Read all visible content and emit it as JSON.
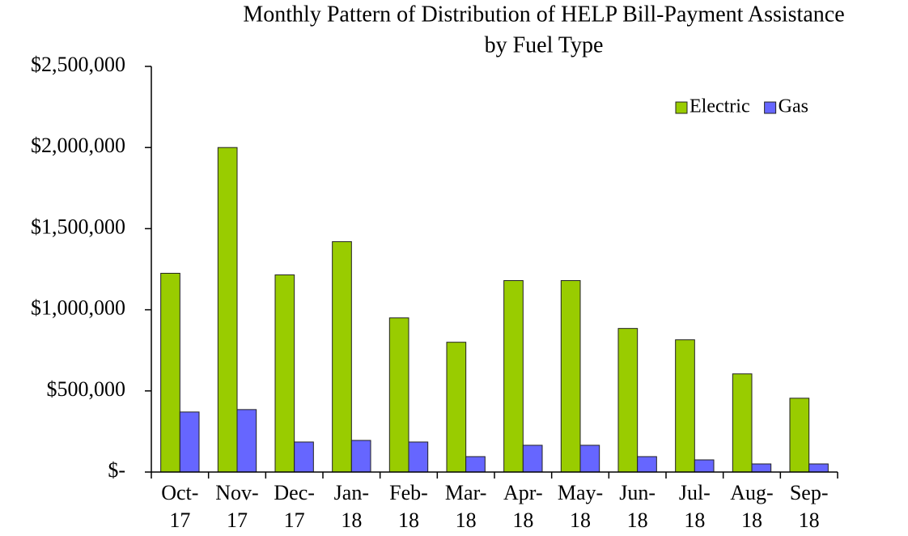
{
  "chart_data": {
    "type": "bar",
    "title": [
      "Monthly Pattern of Distribution of HELP Bill-Payment Assistance",
      "by Fuel Type"
    ],
    "categories": [
      [
        "Oct-",
        "17"
      ],
      [
        "Nov-",
        "17"
      ],
      [
        "Dec-",
        "17"
      ],
      [
        "Jan-",
        "18"
      ],
      [
        "Feb-",
        "18"
      ],
      [
        "Mar-",
        "18"
      ],
      [
        "Apr-",
        "18"
      ],
      [
        "May-",
        "18"
      ],
      [
        "Jun-",
        "18"
      ],
      [
        "Jul-",
        "18"
      ],
      [
        "Aug-",
        "18"
      ],
      [
        "Sep-",
        "18"
      ]
    ],
    "series": [
      {
        "name": "Electric",
        "color": "#99cc00",
        "values": [
          1225000,
          2000000,
          1215000,
          1420000,
          950000,
          800000,
          1180000,
          1180000,
          885000,
          815000,
          605000,
          455000
        ]
      },
      {
        "name": "Gas",
        "color": "#6666ff",
        "values": [
          370000,
          385000,
          185000,
          195000,
          185000,
          95000,
          165000,
          165000,
          95000,
          75000,
          50000,
          50000
        ]
      }
    ],
    "ylim": [
      0,
      2500000
    ],
    "yticks": [
      {
        "value": 0,
        "label": "$-"
      },
      {
        "value": 500000,
        "label": "$500,000"
      },
      {
        "value": 1000000,
        "label": "$1,000,000"
      },
      {
        "value": 1500000,
        "label": "$1,500,000"
      },
      {
        "value": 2000000,
        "label": "$2,000,000"
      },
      {
        "value": 2500000,
        "label": "$2,500,000"
      }
    ],
    "legend": "top-right"
  }
}
